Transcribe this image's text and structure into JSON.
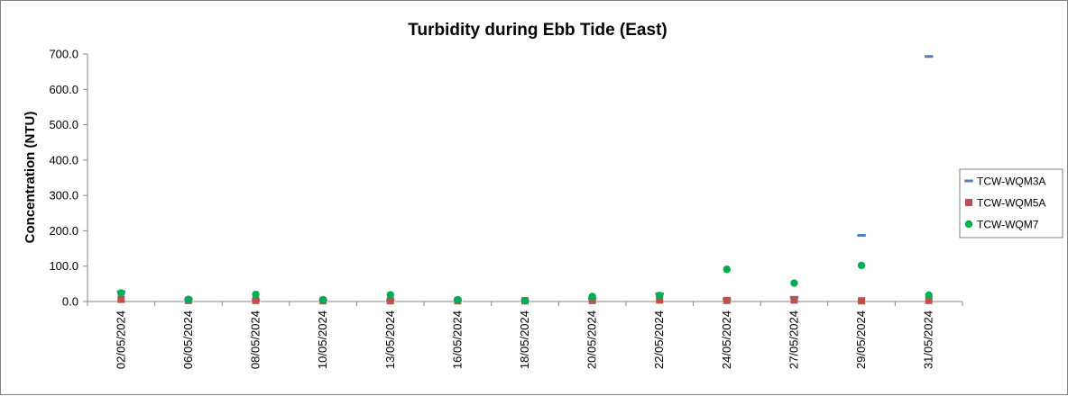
{
  "chart_data": {
    "type": "scatter",
    "title": "Turbidity during Ebb Tide (East)",
    "xlabel": "",
    "ylabel": "Concentration (NTU)",
    "ylim": [
      0,
      700
    ],
    "yticks": [
      "0.0",
      "100.0",
      "200.0",
      "300.0",
      "400.0",
      "500.0",
      "600.0",
      "700.0"
    ],
    "categories": [
      "02/05/2024",
      "06/05/2024",
      "08/05/2024",
      "10/05/2024",
      "13/05/2024",
      "16/05/2024",
      "18/05/2024",
      "20/05/2024",
      "22/05/2024",
      "24/05/2024",
      "27/05/2024",
      "29/05/2024",
      "31/05/2024"
    ],
    "legend_position": "right",
    "grid": false,
    "series": [
      {
        "name": "TCW-WQM3A",
        "marker": "dash",
        "color": "#4f81bd",
        "values": [
          28,
          6,
          3,
          3,
          3,
          3,
          2,
          8,
          22,
          7,
          12,
          187,
          693
        ]
      },
      {
        "name": "TCW-WQM5A",
        "marker": "square",
        "color": "#c0504d",
        "values": [
          6,
          3,
          3,
          2,
          2,
          2,
          2,
          3,
          4,
          3,
          4,
          2,
          3
        ]
      },
      {
        "name": "TCW-WQM7",
        "marker": "circle",
        "color": "#00b050",
        "values": [
          24,
          6,
          20,
          5,
          19,
          5,
          2,
          14,
          17,
          91,
          52,
          102,
          18
        ]
      }
    ]
  }
}
